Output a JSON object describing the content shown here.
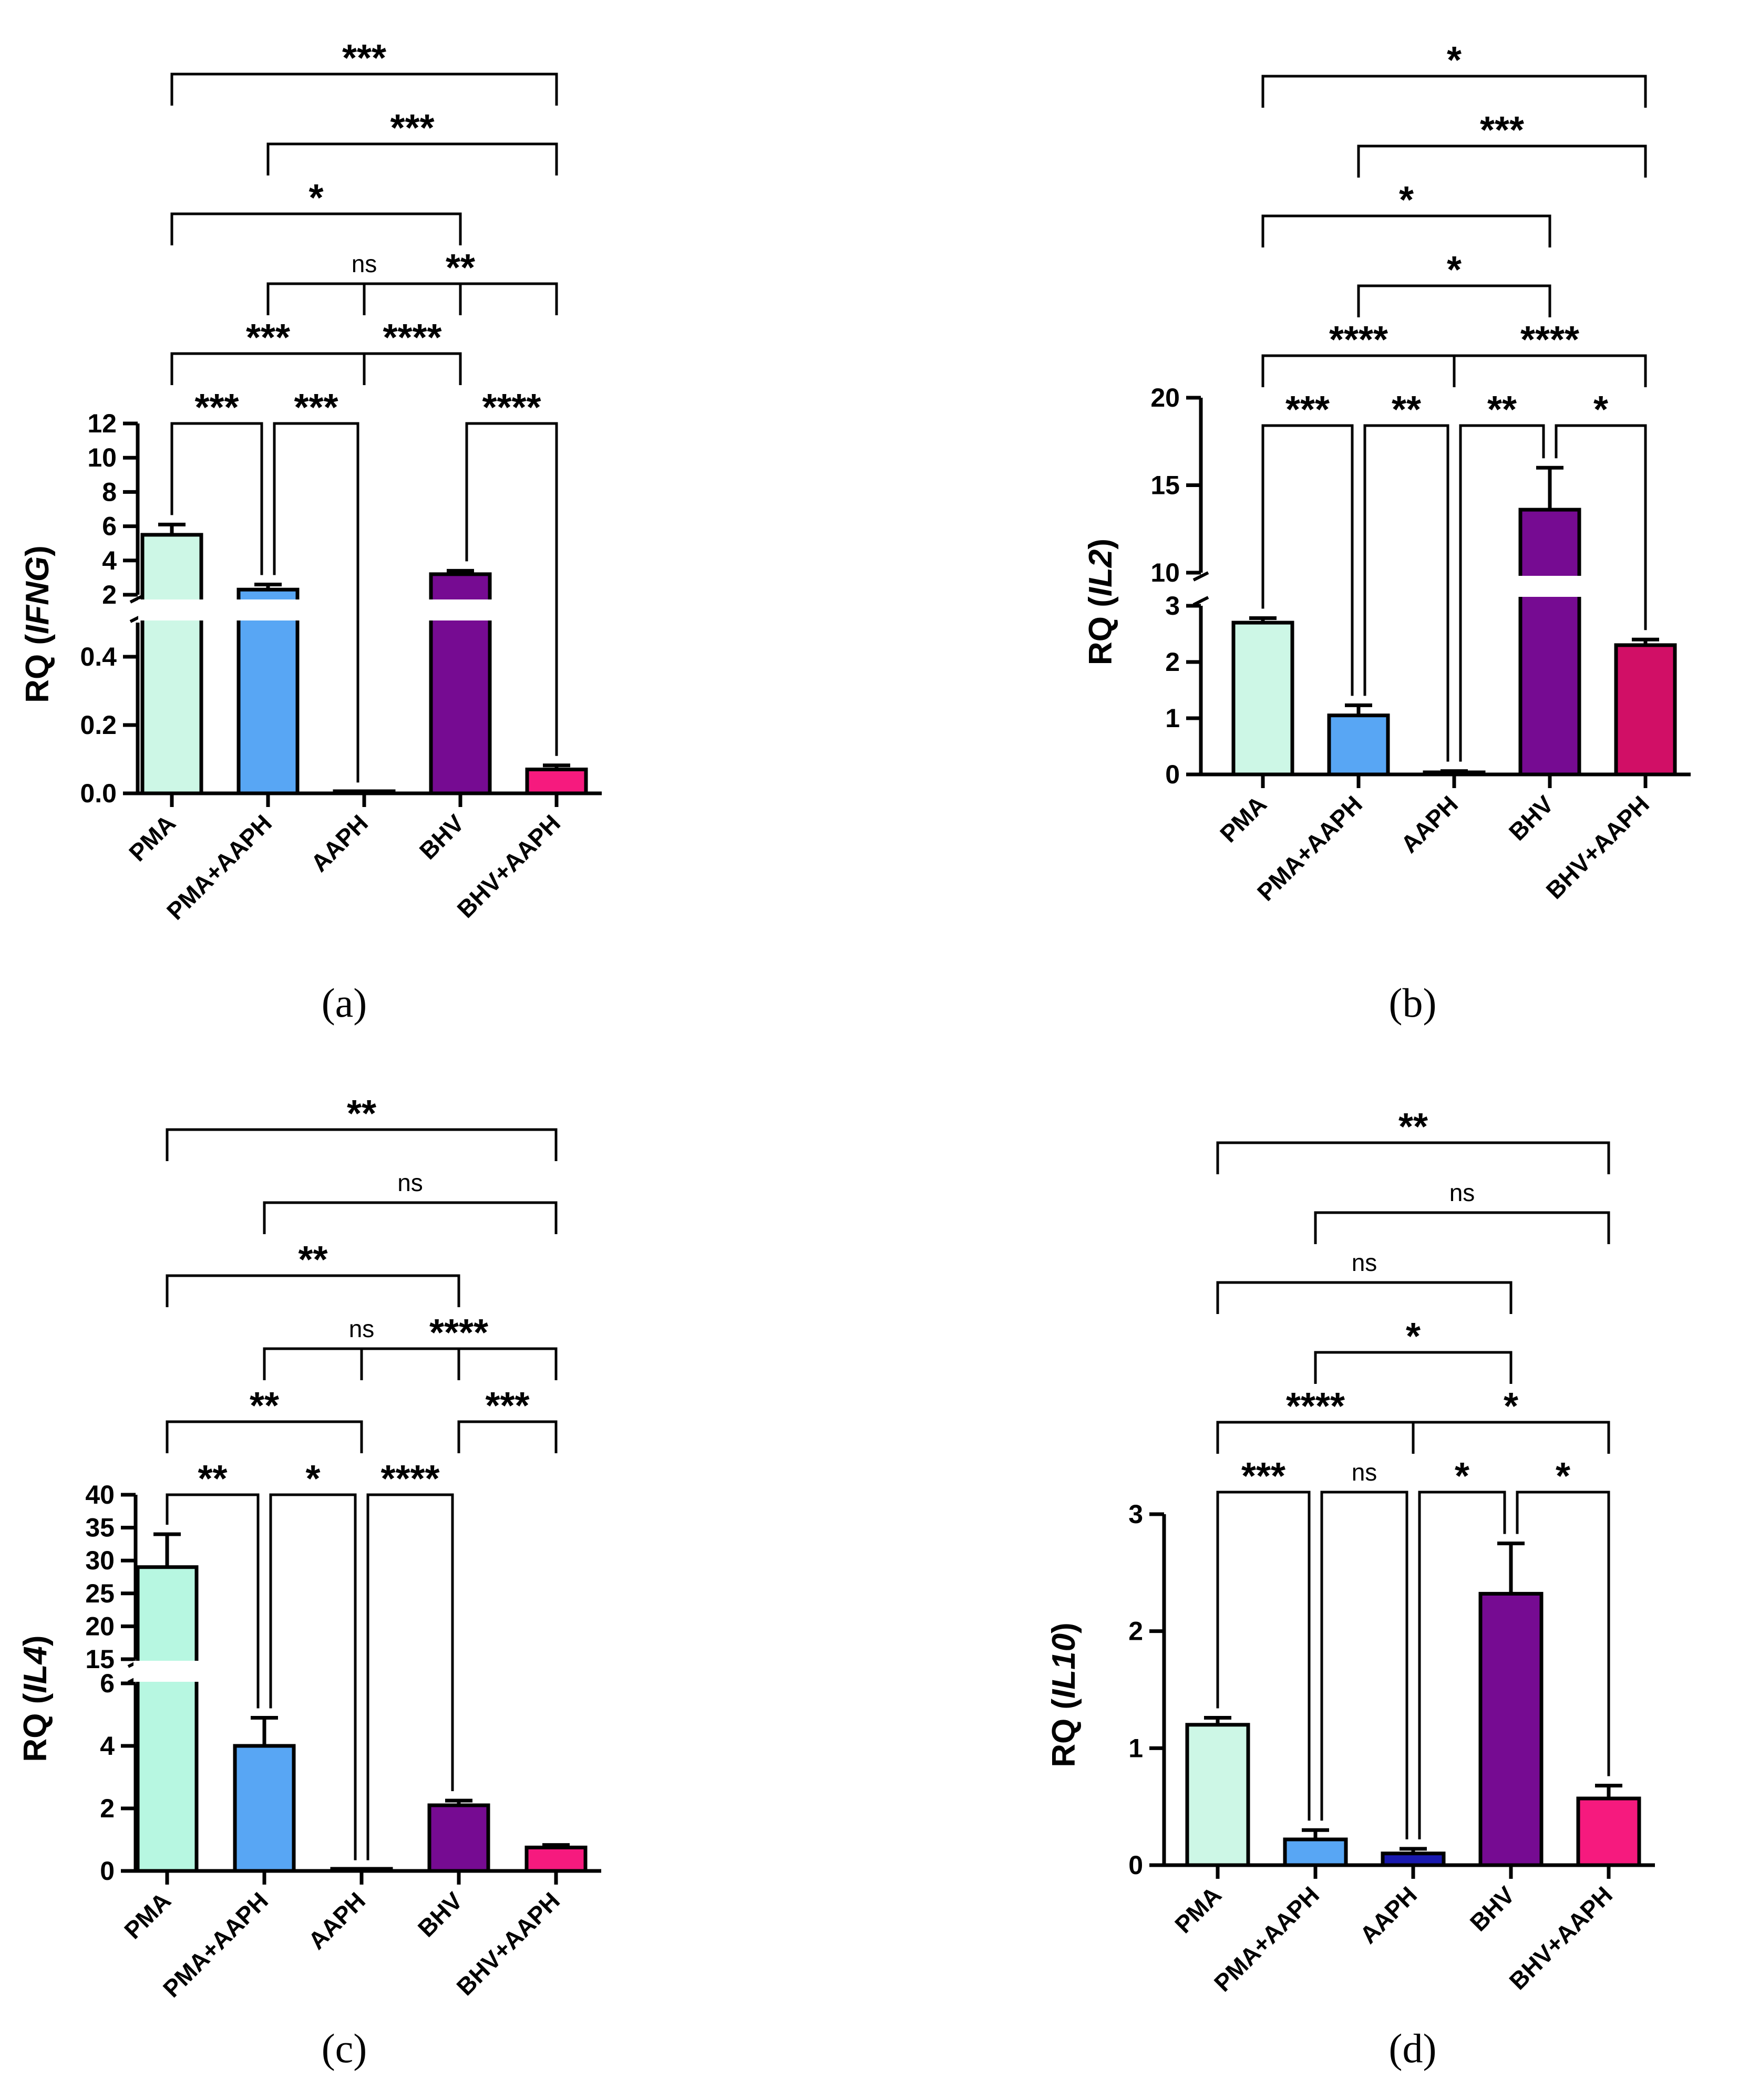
{
  "figure": {
    "panel_labels": [
      "(a)",
      "(b)",
      "(c)",
      "(d)"
    ]
  },
  "chart_data": [
    {
      "panel": "(a)",
      "type": "bar",
      "ylabel_prefix": "RQ (",
      "ylabel_gene": "IFNG",
      "ylabel_suffix": ")",
      "categories": [
        "PMA",
        "PMA+AAPH",
        "AAPH",
        "BHV",
        "BHV+AAPH"
      ],
      "values": [
        5.5,
        2.3,
        0.003,
        3.2,
        0.07
      ],
      "errors": [
        0.6,
        0.3,
        0.001,
        0.2,
        0.012
      ],
      "colors": [
        "#cdf7e6",
        "#58a6f4",
        "#2a2aa3",
        "#760b92",
        "#f61a7e"
      ],
      "y_break": {
        "lower_range": [
          0,
          0.5
        ],
        "lower_ticks": [
          "0.0",
          "0.2",
          "0.4"
        ],
        "upper_range": [
          2,
          12
        ],
        "upper_ticks": [
          "2",
          "4",
          "6",
          "8",
          "10",
          "12"
        ]
      },
      "comparisons": [
        {
          "from": "PMA",
          "to": "PMA+AAPH",
          "label": "***"
        },
        {
          "from": "PMA+AAPH",
          "to": "AAPH",
          "label": "***"
        },
        {
          "from": "BHV",
          "to": "BHV+AAPH",
          "label": "****"
        },
        {
          "from": "PMA",
          "to": "AAPH",
          "label": "***"
        },
        {
          "from": "AAPH",
          "to": "BHV",
          "label": "****"
        },
        {
          "from": "PMA+AAPH",
          "to": "BHV",
          "label": "ns"
        },
        {
          "from": "AAPH",
          "to": "BHV+AAPH",
          "label": "**"
        },
        {
          "from": "PMA",
          "to": "BHV",
          "label": "*"
        },
        {
          "from": "PMA+AAPH",
          "to": "BHV+AAPH",
          "label": "***"
        },
        {
          "from": "PMA",
          "to": "BHV+AAPH",
          "label": "***"
        }
      ]
    },
    {
      "panel": "(b)",
      "type": "bar",
      "ylabel_prefix": "RQ (",
      "ylabel_gene": "IL2",
      "ylabel_suffix": ")",
      "categories": [
        "PMA",
        "PMA+AAPH",
        "AAPH",
        "BHV",
        "BHV+AAPH"
      ],
      "values": [
        2.7,
        1.05,
        0.03,
        13.6,
        2.3
      ],
      "errors": [
        0.08,
        0.18,
        0.03,
        2.4,
        0.1
      ],
      "colors": [
        "#cdf7e6",
        "#58a6f4",
        "#2a2aa3",
        "#760b92",
        "#d10f66"
      ],
      "y_break": {
        "lower_range": [
          0,
          3
        ],
        "lower_ticks": [
          "0",
          "1",
          "2",
          "3"
        ],
        "upper_range": [
          10,
          20
        ],
        "upper_ticks": [
          "10",
          "15",
          "20"
        ]
      },
      "comparisons": [
        {
          "from": "PMA",
          "to": "PMA+AAPH",
          "label": "***"
        },
        {
          "from": "PMA+AAPH",
          "to": "AAPH",
          "label": "**"
        },
        {
          "from": "AAPH",
          "to": "BHV",
          "label": "**"
        },
        {
          "from": "BHV",
          "to": "BHV+AAPH",
          "label": "*"
        },
        {
          "from": "PMA",
          "to": "AAPH",
          "label": "****"
        },
        {
          "from": "AAPH",
          "to": "BHV+AAPH",
          "label": "****"
        },
        {
          "from": "PMA+AAPH",
          "to": "BHV",
          "label": "*"
        },
        {
          "from": "PMA",
          "to": "BHV",
          "label": "*"
        },
        {
          "from": "PMA+AAPH",
          "to": "BHV+AAPH",
          "label": "***"
        },
        {
          "from": "PMA",
          "to": "BHV+AAPH",
          "label": "*"
        }
      ]
    },
    {
      "panel": "(c)",
      "type": "bar",
      "ylabel_prefix": "RQ (",
      "ylabel_gene": "IL4",
      "ylabel_suffix": ")",
      "categories": [
        "PMA",
        "PMA+AAPH",
        "AAPH",
        "BHV",
        "BHV+AAPH"
      ],
      "values": [
        29,
        4.0,
        0.03,
        2.1,
        0.75
      ],
      "errors": [
        5,
        0.9,
        0.01,
        0.15,
        0.08
      ],
      "colors": [
        "#b7f7e1",
        "#58a6f4",
        "#2a2aa3",
        "#760b92",
        "#f61a7e"
      ],
      "y_break": {
        "lower_range": [
          0,
          6
        ],
        "lower_ticks": [
          "0",
          "2",
          "4",
          "6"
        ],
        "upper_range": [
          15,
          40
        ],
        "upper_ticks": [
          "15",
          "20",
          "25",
          "30",
          "35",
          "40"
        ]
      },
      "comparisons": [
        {
          "from": "PMA",
          "to": "PMA+AAPH",
          "label": "**"
        },
        {
          "from": "PMA+AAPH",
          "to": "AAPH",
          "label": "*"
        },
        {
          "from": "AAPH",
          "to": "BHV",
          "label": "****"
        },
        {
          "from": "BHV",
          "to": "BHV+AAPH",
          "label": "***"
        },
        {
          "from": "PMA",
          "to": "AAPH",
          "label": "**"
        },
        {
          "from": "AAPH",
          "to": "BHV+AAPH",
          "label": "****"
        },
        {
          "from": "PMA+AAPH",
          "to": "BHV",
          "label": "ns"
        },
        {
          "from": "PMA",
          "to": "BHV",
          "label": "**"
        },
        {
          "from": "PMA+AAPH",
          "to": "BHV+AAPH",
          "label": "ns"
        },
        {
          "from": "PMA",
          "to": "BHV+AAPH",
          "label": "**"
        }
      ]
    },
    {
      "panel": "(d)",
      "type": "bar",
      "ylabel_prefix": "RQ (",
      "ylabel_gene": "IL10",
      "ylabel_suffix": ")",
      "categories": [
        "PMA",
        "PMA+AAPH",
        "AAPH",
        "BHV",
        "BHV+AAPH"
      ],
      "values": [
        1.2,
        0.22,
        0.1,
        2.32,
        0.57
      ],
      "errors": [
        0.06,
        0.08,
        0.04,
        0.43,
        0.11
      ],
      "colors": [
        "#cdf7e6",
        "#58a6f4",
        "#1a1ab0",
        "#760b92",
        "#f61a7e"
      ],
      "y_break": null,
      "ylim": [
        0,
        3
      ],
      "yticks": [
        "0",
        "1",
        "2",
        "3"
      ],
      "comparisons": [
        {
          "from": "PMA",
          "to": "PMA+AAPH",
          "label": "***"
        },
        {
          "from": "PMA+AAPH",
          "to": "AAPH",
          "label": "ns"
        },
        {
          "from": "AAPH",
          "to": "BHV",
          "label": "*"
        },
        {
          "from": "BHV",
          "to": "BHV+AAPH",
          "label": "*"
        },
        {
          "from": "PMA",
          "to": "AAPH",
          "label": "****"
        },
        {
          "from": "AAPH",
          "to": "BHV+AAPH",
          "label": "*"
        },
        {
          "from": "PMA+AAPH",
          "to": "BHV",
          "label": "*"
        },
        {
          "from": "PMA",
          "to": "BHV",
          "label": "ns"
        },
        {
          "from": "PMA+AAPH",
          "to": "BHV+AAPH",
          "label": "ns"
        },
        {
          "from": "PMA",
          "to": "BHV+AAPH",
          "label": "**"
        }
      ]
    }
  ]
}
